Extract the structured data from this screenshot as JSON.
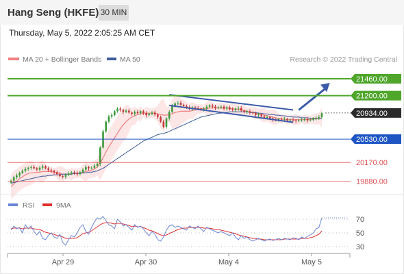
{
  "header": {
    "title": "Hang Seng (HKFE)",
    "timeframe": "30 MIN"
  },
  "date_label": "Thursday, May 5, 2022 2:05:25 AM CET",
  "legend": {
    "ma20_label": "MA 20 + Bollinger Bands",
    "ma50_label": "MA 50",
    "credit": "Research © 2022 Trading Central"
  },
  "colors": {
    "resistance": "#4fa62b",
    "support": "#1f56c4",
    "minor": "#e05454",
    "ma20": "#f08080",
    "ma50": "#3b5b9a",
    "bollinger_fill": "#fce2e2",
    "price_tag": "#2b2b2b",
    "channel": "#3b5aa8",
    "rsi": "#6b86d6",
    "rsi_ma": "#e03030"
  },
  "chart_data": {
    "type": "candlestick",
    "x_ticks": [
      "Apr 29",
      "Apr 30",
      "May 4",
      "May 5"
    ],
    "y_range": [
      19760,
      21640
    ],
    "levels": [
      {
        "value": 21460,
        "label": "21460.00",
        "kind": "resistance"
      },
      {
        "value": 21200,
        "label": "21200.00",
        "kind": "resistance"
      },
      {
        "value": 20934,
        "label": "20934.00",
        "kind": "last"
      },
      {
        "value": 20530,
        "label": "20530.00",
        "kind": "support"
      },
      {
        "value": 20170,
        "label": "20170.00",
        "kind": "minor"
      },
      {
        "value": 19880,
        "label": "19880.00",
        "kind": "minor"
      }
    ],
    "closes": [
      19890,
      19940,
      19970,
      20010,
      20040,
      20070,
      20090,
      20100,
      20080,
      20060,
      20090,
      20110,
      20080,
      20050,
      20040,
      20020,
      19990,
      19960,
      19950,
      19980,
      20000,
      20020,
      20010,
      19990,
      20020,
      20060,
      20100,
      20080,
      20090,
      20120,
      20150,
      20400,
      20650,
      20800,
      20880,
      20900,
      20960,
      21000,
      20980,
      20950,
      20970,
      20940,
      20920,
      20950,
      20930,
      20960,
      20930,
      20900,
      20920,
      20940,
      20910,
      20870,
      20800,
      20720,
      20850,
      20950,
      21040,
      21080,
      21090,
      21060,
      21040,
      21020,
      21000,
      21020,
      21010,
      21000,
      20990,
      21000,
      21030,
      21050,
      21030,
      21010,
      21020,
      21030,
      21000,
      21020,
      20990,
      20980,
      21000,
      21010,
      20970,
      20950,
      20960,
      20940,
      20930,
      20900,
      20910,
      20880,
      20860,
      20870,
      20850,
      20830,
      20820,
      20840,
      20830,
      20840,
      20820,
      20830,
      20820,
      20810,
      20820,
      20830,
      20840,
      20820,
      20830,
      20850,
      20860,
      20870,
      20930
    ],
    "ma20": [
      19800,
      19840,
      19880,
      19920,
      19950,
      19980,
      20000,
      20010,
      20010,
      20020,
      20020,
      20030,
      20030,
      20030,
      20030,
      20020,
      20010,
      20000,
      19990,
      19990,
      19990,
      19990,
      20000,
      20000,
      20010,
      20020,
      20030,
      20040,
      20050,
      20070,
      20100,
      20160,
      20240,
      20330,
      20410,
      20480,
      20550,
      20620,
      20690,
      20750,
      20800,
      20840,
      20870,
      20890,
      20910,
      20920,
      20930,
      20930,
      20930,
      20930,
      20930,
      20920,
      20910,
      20900,
      20900,
      20910,
      20920,
      20940,
      20950,
      20960,
      20960,
      20960,
      20960,
      20970,
      20980,
      20990,
      21000,
      21000,
      21000,
      21010,
      21010,
      21010,
      21010,
      21010,
      21010,
      21010,
      21000,
      21000,
      20990,
      20990,
      20980,
      20970,
      20960,
      20950,
      20940,
      20930,
      20920,
      20910,
      20900,
      20890,
      20880,
      20870,
      20860,
      20850,
      20840,
      20840,
      20830,
      20830,
      20830,
      20830,
      20830,
      20830,
      20830,
      20830,
      20830,
      20840,
      20840,
      20850,
      20860
    ],
    "ma50": [
      19850,
      19860,
      19870,
      19880,
      19890,
      19900,
      19910,
      19920,
      19930,
      19940,
      19950,
      19960,
      19960,
      19970,
      19970,
      19980,
      19980,
      19980,
      19990,
      19990,
      19990,
      19990,
      20000,
      20000,
      20000,
      20010,
      20010,
      20020,
      20020,
      20030,
      20040,
      20060,
      20080,
      20110,
      20140,
      20170,
      20200,
      20230,
      20260,
      20290,
      20320,
      20350,
      20380,
      20410,
      20440,
      20470,
      20500,
      20520,
      20540,
      20560,
      20580,
      20600,
      20610,
      20620,
      20630,
      20650,
      20670,
      20690,
      20710,
      20730,
      20750,
      20770,
      20790,
      20810,
      20830,
      20850,
      20870,
      20880,
      20890,
      20900,
      20910,
      20920,
      20930,
      20930,
      20940,
      20940,
      20950,
      20950,
      20950,
      20950,
      20950,
      20950,
      20950,
      20940,
      20940,
      20940,
      20930,
      20930,
      20920,
      20920,
      20910,
      20910,
      20900,
      20900,
      20890,
      20890,
      20880,
      20880,
      20870,
      20870,
      20870,
      20860,
      20860,
      20860,
      20850,
      20850,
      20850,
      20850,
      20850
    ],
    "channel": {
      "upper": [
        [
          55,
          21215
        ],
        [
          98,
          20980
        ]
      ],
      "lower": [
        [
          55,
          21050
        ],
        [
          98,
          20790
        ]
      ]
    },
    "projection": {
      "from": [
        100,
        20980
      ],
      "to": [
        106,
        21460
      ]
    },
    "rsi": {
      "label": "RSI",
      "ma_label": "9MA",
      "ticks": [
        70,
        50,
        30
      ],
      "range": [
        20,
        80
      ],
      "values": [
        54,
        60,
        56,
        58,
        50,
        62,
        56,
        60,
        52,
        47,
        52,
        42,
        40,
        46,
        50,
        44,
        42,
        48,
        36,
        32,
        40,
        46,
        44,
        50,
        58,
        62,
        52,
        48,
        58,
        66,
        72,
        70,
        74,
        68,
        62,
        60,
        56,
        70,
        66,
        60,
        62,
        58,
        54,
        62,
        58,
        60,
        56,
        50,
        46,
        52,
        48,
        40,
        38,
        44,
        54,
        60,
        62,
        58,
        60,
        58,
        56,
        54,
        60,
        58,
        56,
        60,
        56,
        52,
        58,
        56,
        54,
        52,
        50,
        52,
        50,
        48,
        46,
        50,
        44,
        40,
        46,
        42,
        44,
        40,
        38,
        40,
        42,
        40,
        38,
        40,
        41,
        39,
        40,
        42,
        40,
        42,
        41,
        40,
        43,
        42,
        40,
        44,
        42,
        45,
        47,
        50,
        56,
        58,
        72
      ],
      "ma_values": [
        56,
        57,
        57,
        57,
        56,
        57,
        57,
        57,
        56,
        55,
        55,
        53,
        51,
        50,
        49,
        48,
        46,
        46,
        44,
        42,
        42,
        42,
        42,
        43,
        46,
        49,
        50,
        51,
        53,
        56,
        59,
        62,
        64,
        65,
        65,
        64,
        63,
        64,
        64,
        63,
        62,
        61,
        59,
        60,
        59,
        59,
        58,
        56,
        54,
        53,
        51,
        49,
        47,
        46,
        47,
        49,
        51,
        53,
        55,
        56,
        57,
        57,
        58,
        58,
        58,
        58,
        58,
        57,
        57,
        57,
        56,
        55,
        55,
        54,
        53,
        52,
        51,
        50,
        49,
        47,
        46,
        45,
        44,
        43,
        42,
        42,
        41,
        41,
        40,
        40,
        40,
        40,
        40,
        40,
        40,
        41,
        41,
        41,
        41,
        41,
        41,
        42,
        42,
        42,
        43,
        44,
        46,
        48,
        53
      ]
    }
  }
}
